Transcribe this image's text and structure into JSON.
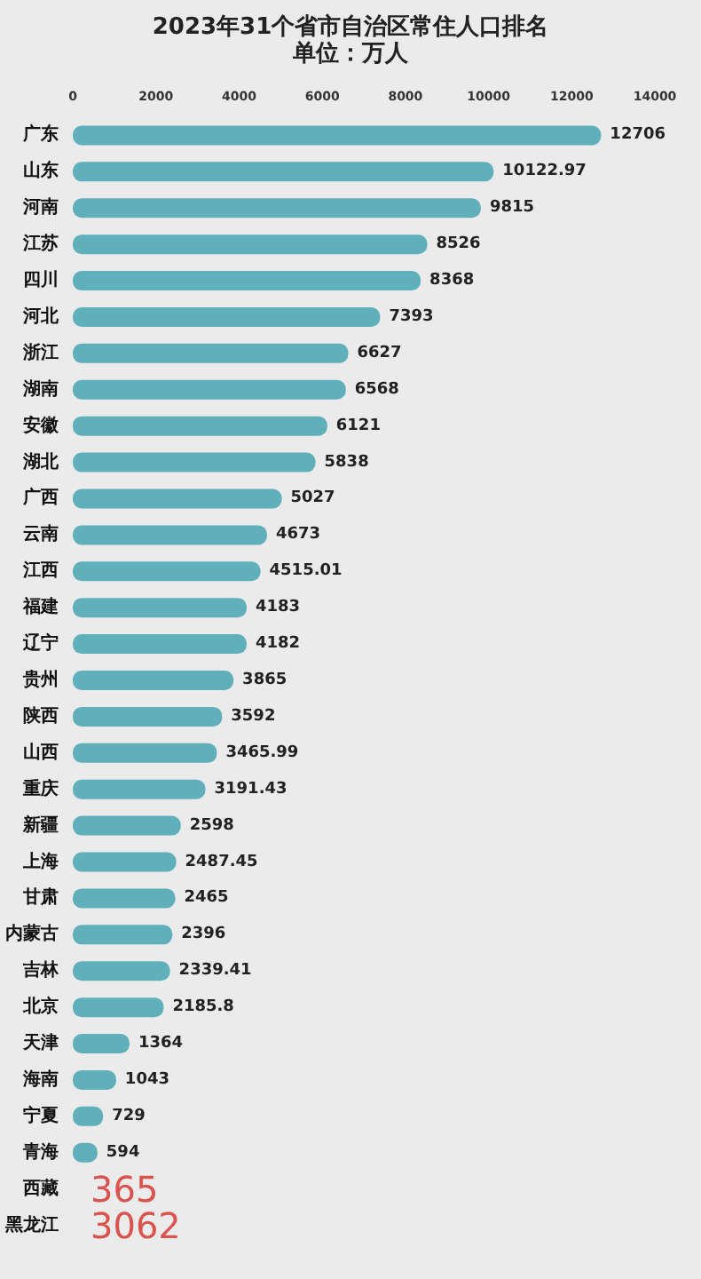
{
  "chart_data": {
    "type": "bar",
    "orientation": "horizontal",
    "title": "2023年31个省市自治区常住人口排名",
    "subtitle": "单位：万人",
    "categories": [
      "广东",
      "山东",
      "河南",
      "江苏",
      "四川",
      "河北",
      "浙江",
      "湖南",
      "安徽",
      "湖北",
      "广西",
      "云南",
      "江西",
      "福建",
      "辽宁",
      "贵州",
      "陕西",
      "山西",
      "重庆",
      "新疆",
      "上海",
      "甘肃",
      "内蒙古",
      "吉林",
      "北京",
      "天津",
      "海南",
      "宁夏",
      "青海",
      "西藏",
      "黑龙江"
    ],
    "values": [
      12706,
      10122.97,
      9815,
      8526,
      8368,
      7393,
      6627,
      6568,
      6121,
      5838,
      5027,
      4673,
      4515.01,
      4183,
      4182,
      3865,
      3592,
      3465.99,
      3191.43,
      2598,
      2487.45,
      2465,
      2396,
      2339.41,
      2185.8,
      1364,
      1043,
      729,
      594,
      null,
      null
    ],
    "value_labels": [
      "12706",
      "10122.97",
      "9815",
      "8526",
      "8368",
      "7393",
      "6627",
      "6568",
      "6121",
      "5838",
      "5027",
      "4673",
      "4515.01",
      "4183",
      "4182",
      "3865",
      "3592",
      "3465.99",
      "3191.43",
      "2598",
      "2487.45",
      "2465",
      "2396",
      "2339.41",
      "2185.8",
      "1364",
      "1043",
      "729",
      "594",
      "365",
      "3062"
    ],
    "color": "#5fb0bb",
    "xlim": [
      0,
      14000
    ],
    "xticks": [
      0,
      2000,
      4000,
      6000,
      8000,
      10000,
      12000,
      14000
    ],
    "grid": false
  }
}
